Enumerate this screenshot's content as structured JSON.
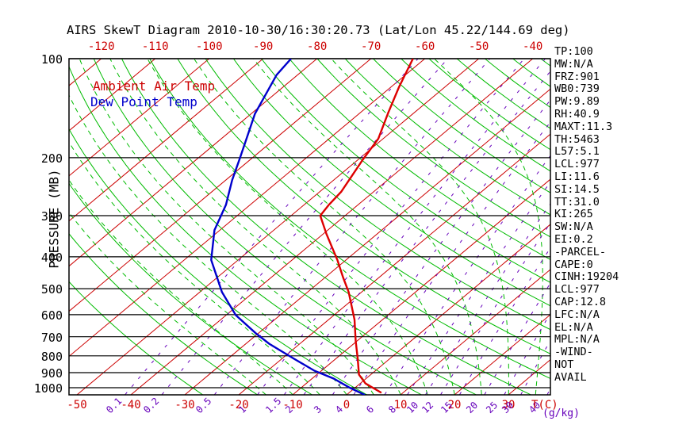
{
  "title": "AIRS SkewT Diagram 2010-10-30/16:30:20.73 (Lat/Lon 45.22/144.69 deg)",
  "legend": {
    "ambient": "Ambient Air Temp",
    "dew": "Dew Point Temp"
  },
  "axes": {
    "pressure_label": "PRESSURE (MB)",
    "pressure_ticks": [
      100,
      200,
      300,
      400,
      500,
      600,
      700,
      800,
      900,
      1000
    ],
    "top_ticks": [
      -120,
      -110,
      -100,
      -90,
      -80,
      -70,
      -60,
      -50,
      -40
    ],
    "bottom_ticks": [
      -50,
      -40,
      -30,
      -20,
      -10,
      0,
      10,
      20,
      30
    ],
    "temp_unit": "T(C)",
    "mixing_unit": "(g/kg)",
    "mixing_labels": [
      0.1,
      0.2,
      0.5,
      1,
      1.5,
      2,
      3,
      4,
      6,
      8,
      10,
      12,
      15,
      20,
      25,
      30,
      40
    ]
  },
  "stats_panel": {
    "lines": [
      "TP:100",
      "MW:N/A",
      "FRZ:901",
      "WB0:739",
      "PW:9.89",
      "RH:40.9",
      "MAXT:11.3",
      "TH:5463",
      "L57:5.1",
      "LCL:977",
      "LI:11.6",
      "SI:14.5",
      "TT:31.0",
      "KI:265",
      "SW:N/A",
      "EI:0.2",
      "-PARCEL-",
      "CAPE:0",
      "CINH:19204",
      "LCL:977",
      "CAP:12.8",
      "LFC:N/A",
      "EL:N/A",
      "MPL:N/A",
      "-WIND-",
      "NOT",
      "AVAIL"
    ]
  },
  "colors": {
    "isotherm": "#cc0000",
    "adiabat": "#00bb00",
    "mixing": "#6600bb",
    "pressure_line": "#000000",
    "ambient_curve": "#dd0000",
    "dew_curve": "#0000cc",
    "tick_red": "#cc0000",
    "tick_purple": "#6600bb"
  },
  "chart_data": {
    "type": "line",
    "title": "AIRS SkewT Diagram 2010-10-30/16:30:20.73 (Lat/Lon 45.22/144.69 deg)",
    "xlabel": "T(C)",
    "ylabel": "PRESSURE (MB)",
    "x_axis_range_bottom_C": [
      -50,
      30
    ],
    "x_axis_range_top_C": [
      -120,
      -40
    ],
    "pressure_range_mb": [
      100,
      1050
    ],
    "grid": {
      "isotherm_range_C": [
        -160,
        40
      ],
      "isotherm_step_C": 10,
      "dry_adiabat_theta_K": [
        243,
        473
      ],
      "dry_adiabat_step_K": 10,
      "moist_adiabat_surface_C": [
        -15,
        45
      ],
      "moist_adiabat_step_C": 5,
      "mixing_ratio_g_kg": [
        0.1,
        0.2,
        0.5,
        1,
        1.5,
        2,
        3,
        4,
        6,
        8,
        10,
        12,
        15,
        20,
        25,
        30,
        40
      ],
      "pressure_lines_mb": [
        100,
        200,
        300,
        400,
        500,
        600,
        700,
        800,
        900,
        1000
      ]
    },
    "series": [
      {
        "name": "Ambient Air Temp",
        "color": "#dd0000",
        "points_p_t": [
          [
            100,
            -62.2
          ],
          [
            122,
            -58.5
          ],
          [
            146,
            -54.8
          ],
          [
            175,
            -50.9
          ],
          [
            203,
            -49.1
          ],
          [
            254,
            -46.0
          ],
          [
            278,
            -45.4
          ],
          [
            300,
            -44.6
          ],
          [
            341,
            -39.4
          ],
          [
            409,
            -31.6
          ],
          [
            463,
            -26.6
          ],
          [
            512,
            -22.4
          ],
          [
            621,
            -15.2
          ],
          [
            722,
            -10.2
          ],
          [
            815,
            -6.0
          ],
          [
            912,
            -2.2
          ],
          [
            971,
            1.0
          ],
          [
            1036,
            6.0
          ]
        ]
      },
      {
        "name": "Dew Point Temp",
        "color": "#0000cc",
        "points_p_t": [
          [
            100,
            -84.8
          ],
          [
            112,
            -83.9
          ],
          [
            147,
            -79.3
          ],
          [
            201,
            -72.2
          ],
          [
            234,
            -68.8
          ],
          [
            278,
            -64.5
          ],
          [
            332,
            -61.0
          ],
          [
            409,
            -55.0
          ],
          [
            512,
            -45.9
          ],
          [
            602,
            -38.2
          ],
          [
            683,
            -30.5
          ],
          [
            735,
            -25.7
          ],
          [
            815,
            -17.9
          ],
          [
            888,
            -11.3
          ],
          [
            938,
            -6.0
          ],
          [
            1000,
            -1.0
          ],
          [
            1052,
            3.4
          ]
        ]
      }
    ]
  }
}
